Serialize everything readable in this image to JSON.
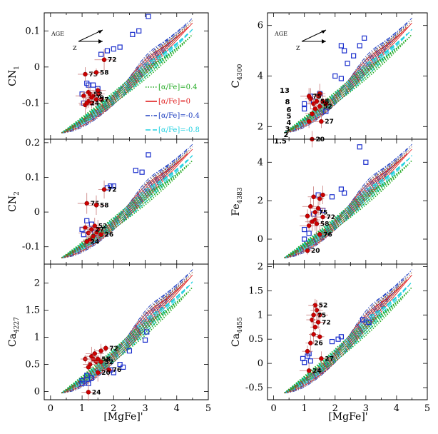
{
  "figure": {
    "xlabel": "[MgFe]'",
    "x_ticks": [
      "0",
      "1",
      "2",
      "3",
      "4",
      "5"
    ],
    "arrow_labels": {
      "age": "AGE",
      "z": "Z"
    },
    "legend": [
      {
        "label": "[α/Fe]=0.4",
        "color": "#22aa22",
        "style": "dotted"
      },
      {
        "label": "[α/Fe]=0",
        "color": "#e02020",
        "style": "solid"
      },
      {
        "label": "[α/Fe]=-0.4",
        "color": "#2040c0",
        "style": "dashdot"
      },
      {
        "label": "[α/Fe]=-0.8",
        "color": "#20d0e0",
        "style": "dashed"
      }
    ],
    "age_grid_labels": [
      "13",
      "8",
      "6",
      "5",
      "4",
      "3",
      "2",
      "1.5"
    ],
    "colors": {
      "cluster_points": "#cc0000",
      "open_squares": "#1a2ecc"
    }
  },
  "chart_data": [
    {
      "type": "scatter",
      "panel": "top-left",
      "ylabel": "CN",
      "ylabel_sub": "1",
      "xlim": [
        -0.2,
        5
      ],
      "ylim": [
        -0.2,
        0.15
      ],
      "y_ticks": [
        "-0.1",
        "0",
        "0.1"
      ],
      "y_tick_values": [
        -0.1,
        0,
        0.1
      ],
      "labeled_points": [
        {
          "label": "75",
          "x": 1.1,
          "y": -0.02
        },
        {
          "label": "58",
          "x": 1.45,
          "y": -0.015
        },
        {
          "label": "72",
          "x": 1.7,
          "y": 0.02
        },
        {
          "label": "52",
          "x": 1.25,
          "y": -0.075
        },
        {
          "label": "20",
          "x": 1.3,
          "y": -0.085
        },
        {
          "label": "27",
          "x": 1.45,
          "y": -0.09
        },
        {
          "label": "24",
          "x": 1.15,
          "y": -0.1
        }
      ],
      "extra_points": [
        [
          1.2,
          -0.07
        ],
        [
          1.35,
          -0.08
        ],
        [
          1.5,
          -0.075
        ],
        [
          1.6,
          -0.09
        ],
        [
          1.2,
          -0.095
        ],
        [
          1.1,
          -0.105
        ],
        [
          1.5,
          -0.065
        ],
        [
          1.3,
          -0.1
        ],
        [
          1.05,
          -0.08
        ]
      ],
      "squares": [
        [
          1.0,
          -0.075
        ],
        [
          1.05,
          -0.1
        ],
        [
          1.15,
          -0.045
        ],
        [
          1.2,
          -0.05
        ],
        [
          1.35,
          -0.05
        ],
        [
          1.5,
          -0.06
        ],
        [
          1.6,
          0.035
        ],
        [
          1.8,
          0.045
        ],
        [
          2.0,
          0.05
        ],
        [
          2.2,
          0.055
        ],
        [
          2.6,
          0.09
        ],
        [
          2.8,
          0.1
        ],
        [
          3.1,
          0.14
        ]
      ]
    },
    {
      "type": "scatter",
      "panel": "top-right",
      "ylabel": "C",
      "ylabel_sub": "4300",
      "xlim": [
        -0.2,
        5
      ],
      "ylim": [
        1.5,
        6.5
      ],
      "y_ticks": [
        "2",
        "4",
        "6"
      ],
      "y_tick_values": [
        2,
        4,
        6
      ],
      "labeled_points": [
        {
          "label": "75",
          "x": 1.15,
          "y": 3.2
        },
        {
          "label": "58",
          "x": 1.4,
          "y": 3.0
        },
        {
          "label": "52",
          "x": 1.5,
          "y": 2.8
        },
        {
          "label": "27",
          "x": 1.55,
          "y": 2.2
        },
        {
          "label": "20",
          "x": 1.25,
          "y": 1.5
        }
      ],
      "extra_points": [
        [
          1.2,
          3.1
        ],
        [
          1.3,
          2.9
        ],
        [
          1.45,
          3.2
        ],
        [
          1.6,
          3.0
        ],
        [
          1.7,
          2.9
        ],
        [
          1.35,
          2.7
        ],
        [
          1.5,
          3.3
        ],
        [
          1.25,
          2.5
        ],
        [
          1.15,
          2.2
        ]
      ],
      "squares": [
        [
          1.0,
          2.9
        ],
        [
          1.0,
          2.7
        ],
        [
          1.2,
          3.2
        ],
        [
          1.3,
          3.0
        ],
        [
          1.5,
          3.3
        ],
        [
          1.7,
          2.6
        ],
        [
          2.0,
          4.0
        ],
        [
          2.2,
          3.9
        ],
        [
          2.4,
          4.5
        ],
        [
          2.8,
          5.2
        ],
        [
          2.95,
          5.5
        ],
        [
          2.2,
          5.2
        ],
        [
          2.3,
          5.0
        ],
        [
          2.6,
          4.8
        ]
      ]
    },
    {
      "type": "scatter",
      "panel": "mid-left",
      "ylabel": "CN",
      "ylabel_sub": "2",
      "xlim": [
        -0.2,
        5
      ],
      "ylim": [
        -0.15,
        0.21
      ],
      "y_ticks": [
        "-0.1",
        "0",
        "0.1",
        "0.2"
      ],
      "y_tick_values": [
        -0.1,
        0,
        0.1,
        0.2
      ],
      "labeled_points": [
        {
          "label": "72",
          "x": 1.7,
          "y": 0.065
        },
        {
          "label": "75",
          "x": 1.15,
          "y": 0.025
        },
        {
          "label": "58",
          "x": 1.45,
          "y": 0.02
        },
        {
          "label": "52",
          "x": 1.4,
          "y": -0.04
        },
        {
          "label": "27",
          "x": 1.3,
          "y": -0.05
        },
        {
          "label": "26",
          "x": 1.6,
          "y": -0.065
        },
        {
          "label": "24",
          "x": 1.15,
          "y": -0.085
        }
      ],
      "extra_points": [
        [
          1.2,
          -0.06
        ],
        [
          1.35,
          -0.07
        ],
        [
          1.5,
          -0.05
        ],
        [
          1.25,
          -0.08
        ],
        [
          1.1,
          -0.045
        ],
        [
          1.45,
          -0.06
        ]
      ],
      "squares": [
        [
          1.0,
          -0.05
        ],
        [
          1.05,
          -0.065
        ],
        [
          1.15,
          -0.025
        ],
        [
          1.3,
          -0.035
        ],
        [
          1.4,
          -0.06
        ],
        [
          1.8,
          0.07
        ],
        [
          1.9,
          0.075
        ],
        [
          2.0,
          0.075
        ],
        [
          2.7,
          0.12
        ],
        [
          2.9,
          0.115
        ],
        [
          3.1,
          0.165
        ]
      ]
    },
    {
      "type": "scatter",
      "panel": "mid-right",
      "ylabel": "Fe",
      "ylabel_sub": "4383",
      "xlim": [
        -0.2,
        5
      ],
      "ylim": [
        -1.3,
        5.2
      ],
      "y_ticks": [
        "0",
        "2",
        "4"
      ],
      "y_tick_values": [
        0,
        2,
        4
      ],
      "labeled_points": [
        {
          "label": "75",
          "x": 1.35,
          "y": 1.4
        },
        {
          "label": "72",
          "x": 1.6,
          "y": 1.15
        },
        {
          "label": "58",
          "x": 1.4,
          "y": 0.8
        },
        {
          "label": "76",
          "x": 1.5,
          "y": 0.25
        },
        {
          "label": "20",
          "x": 1.1,
          "y": -0.6
        }
      ],
      "extra_points": [
        [
          1.2,
          1.7
        ],
        [
          1.3,
          2.2
        ],
        [
          1.5,
          2.1
        ],
        [
          1.1,
          1.2
        ],
        [
          1.35,
          1.0
        ],
        [
          1.25,
          0.9
        ],
        [
          1.45,
          1.6
        ],
        [
          1.6,
          2.3
        ],
        [
          1.15,
          0.7
        ]
      ],
      "squares": [
        [
          1.0,
          0.5
        ],
        [
          1.0,
          0.0
        ],
        [
          1.15,
          0.3
        ],
        [
          1.3,
          1.3
        ],
        [
          1.45,
          2.3
        ],
        [
          1.6,
          1.5
        ],
        [
          1.9,
          2.2
        ],
        [
          2.2,
          2.6
        ],
        [
          2.3,
          2.4
        ],
        [
          2.8,
          4.8
        ],
        [
          3.0,
          4.0
        ]
      ]
    },
    {
      "type": "scatter",
      "panel": "bottom-left",
      "ylabel": "Ca",
      "ylabel_sub": "4227",
      "xlim": [
        -0.2,
        5
      ],
      "ylim": [
        -0.15,
        2.35
      ],
      "y_ticks": [
        "0",
        "0.5",
        "1",
        "1.5",
        "2"
      ],
      "y_tick_values": [
        0,
        0.5,
        1,
        1.5,
        2
      ],
      "labeled_points": [
        {
          "label": "72",
          "x": 1.75,
          "y": 0.8
        },
        {
          "label": "58",
          "x": 1.5,
          "y": 0.6
        },
        {
          "label": "52",
          "x": 1.6,
          "y": 0.55
        },
        {
          "label": "76",
          "x": 1.85,
          "y": 0.4
        },
        {
          "label": "20",
          "x": 1.5,
          "y": 0.35
        },
        {
          "label": "24",
          "x": 1.2,
          "y": -0.01
        }
      ],
      "extra_points": [
        [
          1.1,
          0.6
        ],
        [
          1.3,
          0.65
        ],
        [
          1.4,
          0.7
        ],
        [
          1.25,
          0.5
        ],
        [
          1.6,
          0.75
        ],
        [
          1.2,
          0.45
        ],
        [
          1.45,
          0.55
        ],
        [
          1.35,
          0.6
        ]
      ],
      "squares": [
        [
          1.0,
          0.2
        ],
        [
          1.0,
          0.15
        ],
        [
          1.15,
          0.3
        ],
        [
          1.2,
          0.15
        ],
        [
          1.3,
          0.25
        ],
        [
          1.9,
          0.4
        ],
        [
          2.0,
          0.35
        ],
        [
          2.2,
          0.5
        ],
        [
          2.3,
          0.45
        ],
        [
          2.5,
          0.75
        ],
        [
          3.0,
          0.95
        ],
        [
          3.05,
          1.1
        ]
      ]
    },
    {
      "type": "scatter",
      "panel": "bottom-right",
      "ylabel": "Ca",
      "ylabel_sub": "4455",
      "xlim": [
        -0.2,
        5
      ],
      "ylim": [
        -0.75,
        2.05
      ],
      "y_ticks": [
        "-0.5",
        "0",
        "0.5",
        "1",
        "1.5",
        "2"
      ],
      "y_tick_values": [
        -0.5,
        0,
        0.5,
        1,
        1.5,
        2
      ],
      "labeled_points": [
        {
          "label": "52",
          "x": 1.35,
          "y": 1.2
        },
        {
          "label": "75",
          "x": 1.3,
          "y": 1.0
        },
        {
          "label": "72",
          "x": 1.45,
          "y": 0.85
        },
        {
          "label": "26",
          "x": 1.2,
          "y": 0.42
        },
        {
          "label": "27",
          "x": 1.55,
          "y": 0.1
        },
        {
          "label": "24",
          "x": 1.15,
          "y": -0.15
        }
      ],
      "extra_points": [
        [
          1.4,
          1.1
        ],
        [
          1.5,
          1.0
        ],
        [
          1.25,
          0.9
        ],
        [
          1.3,
          0.6
        ],
        [
          1.35,
          0.75
        ],
        [
          1.1,
          0.25
        ],
        [
          1.5,
          0.55
        ]
      ],
      "squares": [
        [
          0.95,
          0.1
        ],
        [
          1.0,
          0.02
        ],
        [
          1.1,
          0.15
        ],
        [
          1.15,
          0.2
        ],
        [
          1.2,
          0.05
        ],
        [
          1.9,
          0.45
        ],
        [
          2.1,
          0.5
        ],
        [
          2.2,
          0.55
        ],
        [
          2.9,
          0.9
        ],
        [
          3.1,
          0.85
        ]
      ]
    }
  ]
}
